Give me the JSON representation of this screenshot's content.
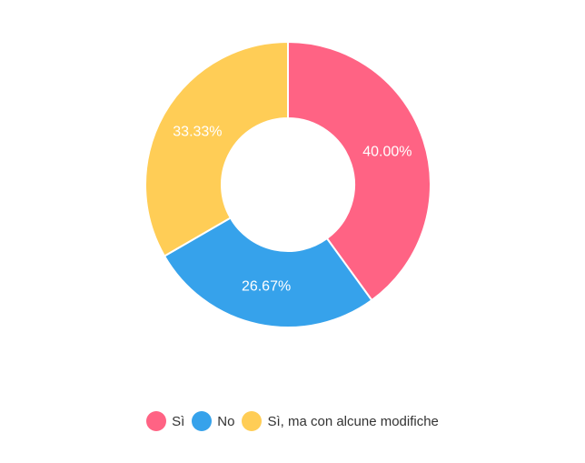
{
  "chart_data": {
    "type": "pie",
    "donut": true,
    "categories": [
      "Sì",
      "No",
      "Sì, ma con alcune modifiche"
    ],
    "values": [
      40.0,
      26.67,
      33.33
    ],
    "data_labels": [
      "40.00%",
      "26.67%",
      "33.33%"
    ],
    "colors": [
      "#ff6384",
      "#36a2eb",
      "#ffcd56"
    ],
    "legend_position": "bottom",
    "title": ""
  }
}
